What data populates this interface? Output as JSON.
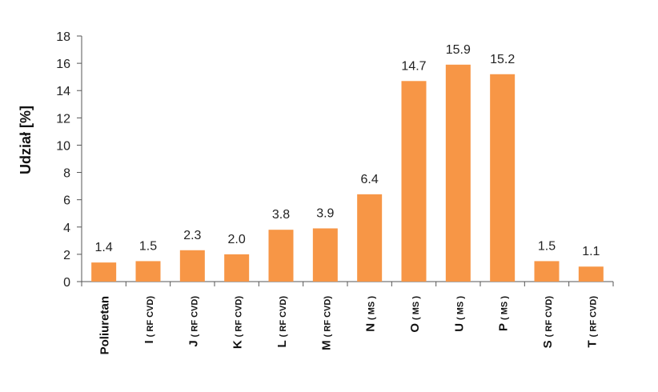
{
  "chart_data": {
    "type": "bar",
    "title": "",
    "xlabel": "",
    "ylabel": "Udział [%]",
    "ylim": [
      0,
      18
    ],
    "yticks": [
      0,
      2,
      4,
      6,
      8,
      10,
      12,
      14,
      16,
      18
    ],
    "grid": false,
    "bar_color": "#F79646",
    "categories": [
      {
        "main": "Poliuretan",
        "sub": ""
      },
      {
        "main": "I",
        "sub": "( RF CVD)"
      },
      {
        "main": "J",
        "sub": "( RF CVD)"
      },
      {
        "main": "K",
        "sub": "( RF CVD)"
      },
      {
        "main": "L",
        "sub": "( RF CVD)"
      },
      {
        "main": "M",
        "sub": "( RF CVD)"
      },
      {
        "main": "N",
        "sub": "( MS )"
      },
      {
        "main": "O",
        "sub": "( MS )"
      },
      {
        "main": "U",
        "sub": "( MS )"
      },
      {
        "main": "P",
        "sub": "( MS )"
      },
      {
        "main": "S",
        "sub": "( RF CVD)"
      },
      {
        "main": "T",
        "sub": "( RF CVD)"
      }
    ],
    "values": [
      1.4,
      1.5,
      2.3,
      2.0,
      3.8,
      3.9,
      6.4,
      14.7,
      15.9,
      15.2,
      1.5,
      1.1
    ],
    "value_labels": [
      "1.4",
      "1.5",
      "2.3",
      "2.0",
      "3.8",
      "3.9",
      "6.4",
      "14.7",
      "15.9",
      "15.2",
      "1.5",
      "1.1"
    ]
  }
}
